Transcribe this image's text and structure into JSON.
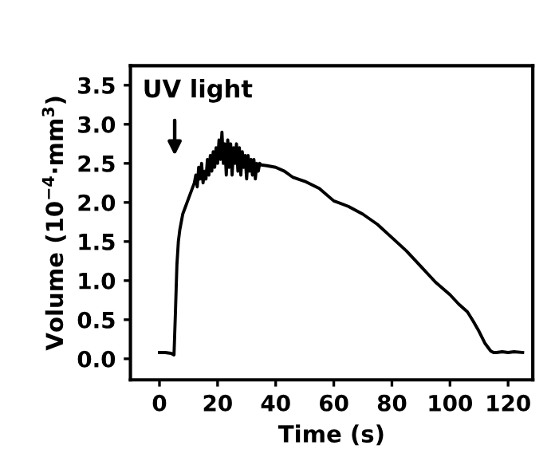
{
  "chart_data": {
    "type": "line",
    "xlabel": "Time (s)",
    "ylabel": "Volume (10$^{−4}$·mm$^{3}$)",
    "xlim": [
      -10,
      128.5
    ],
    "ylim": [
      -0.27,
      3.75
    ],
    "xticks": [
      0,
      20,
      40,
      60,
      80,
      100,
      120
    ],
    "yticks": [
      {
        "value": 0,
        "label": "0.0"
      },
      {
        "value": 0.5,
        "label": "0.5"
      },
      {
        "value": 1,
        "label": "1.0"
      },
      {
        "value": 1.5,
        "label": "1.5"
      },
      {
        "value": 2,
        "label": "2.0"
      },
      {
        "value": 2.5,
        "label": "2.5"
      },
      {
        "value": 3,
        "label": "3.0"
      },
      {
        "value": 3.5,
        "label": "3.5"
      }
    ],
    "grid": false,
    "marker": "none",
    "line_style": "solid",
    "annotations": [
      "UV light"
    ],
    "series": [
      {
        "color": "#000000",
        "x": [
          0,
          2,
          4,
          5,
          5.5,
          6,
          6.5,
          7,
          8,
          9,
          10,
          11,
          12,
          12.5,
          13,
          13.5,
          14,
          14.5,
          15,
          15.5,
          16,
          16.5,
          17,
          17.5,
          18,
          18.5,
          19,
          19.5,
          20,
          20.5,
          21,
          21.5,
          22,
          22.5,
          23,
          23.5,
          24,
          24.5,
          25,
          25.5,
          26,
          26.5,
          27,
          27.5,
          28,
          28.5,
          29,
          29.5,
          30,
          30.5,
          31,
          31.5,
          32,
          32.5,
          33,
          33.5,
          34,
          34.5,
          35,
          37,
          40,
          43,
          46,
          50,
          55,
          60,
          65,
          70,
          75,
          80,
          85,
          90,
          95,
          100,
          103,
          106,
          108,
          110,
          112,
          114,
          115,
          116,
          118,
          120,
          122,
          125
        ],
        "values": [
          0.08,
          0.08,
          0.07,
          0.05,
          0.6,
          1.2,
          1.5,
          1.65,
          1.85,
          1.95,
          2.05,
          2.15,
          2.25,
          2.35,
          2.2,
          2.45,
          2.3,
          2.5,
          2.25,
          2.4,
          2.3,
          2.55,
          2.35,
          2.6,
          2.4,
          2.65,
          2.45,
          2.7,
          2.5,
          2.8,
          2.55,
          2.9,
          2.5,
          2.75,
          2.35,
          2.8,
          2.45,
          2.75,
          2.35,
          2.7,
          2.5,
          2.75,
          2.4,
          2.7,
          2.35,
          2.65,
          2.45,
          2.6,
          2.3,
          2.6,
          2.4,
          2.55,
          2.35,
          2.55,
          2.3,
          2.5,
          2.4,
          2.5,
          2.48,
          2.47,
          2.45,
          2.4,
          2.32,
          2.27,
          2.18,
          2.02,
          1.95,
          1.85,
          1.72,
          1.55,
          1.38,
          1.18,
          0.98,
          0.82,
          0.7,
          0.6,
          0.48,
          0.35,
          0.2,
          0.1,
          0.08,
          0.08,
          0.09,
          0.08,
          0.09,
          0.08
        ]
      }
    ]
  }
}
